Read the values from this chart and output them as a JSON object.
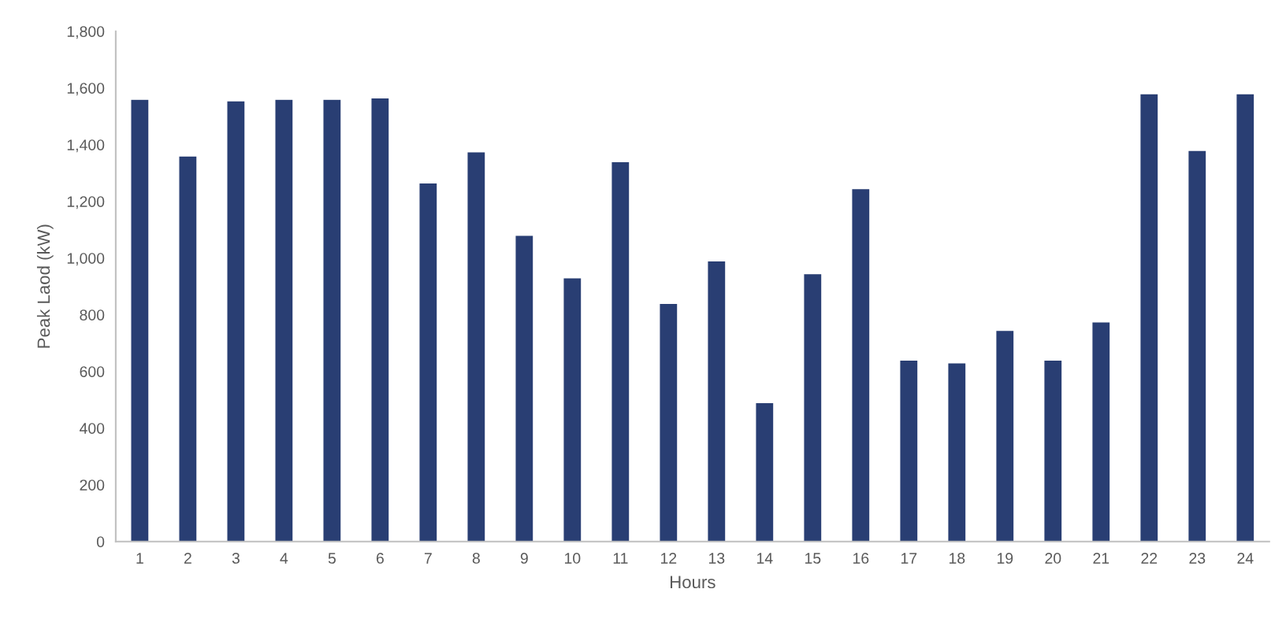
{
  "chart_data": {
    "type": "bar",
    "xlabel": "Hours",
    "ylabel": "Peak Laod (kW)",
    "categories": [
      "1",
      "2",
      "3",
      "4",
      "5",
      "6",
      "7",
      "8",
      "9",
      "10",
      "11",
      "12",
      "13",
      "14",
      "15",
      "16",
      "17",
      "18",
      "19",
      "20",
      "21",
      "22",
      "23",
      "24"
    ],
    "values": [
      1560,
      1360,
      1555,
      1560,
      1560,
      1565,
      1265,
      1375,
      1080,
      930,
      1340,
      840,
      990,
      490,
      945,
      1245,
      640,
      630,
      745,
      640,
      775,
      1580,
      1380,
      1580
    ],
    "color": "#293e73",
    "ylim": [
      0,
      1800
    ],
    "yticks": [
      {
        "value": 0,
        "label": "0"
      },
      {
        "value": 200,
        "label": "200"
      },
      {
        "value": 400,
        "label": "400"
      },
      {
        "value": 600,
        "label": "600"
      },
      {
        "value": 800,
        "label": "800"
      },
      {
        "value": 1000,
        "label": "1,000"
      },
      {
        "value": 1200,
        "label": "1,200"
      },
      {
        "value": 1400,
        "label": "1,400"
      },
      {
        "value": 1600,
        "label": "1,600"
      },
      {
        "value": 1800,
        "label": "1,800"
      }
    ],
    "grid": false
  }
}
